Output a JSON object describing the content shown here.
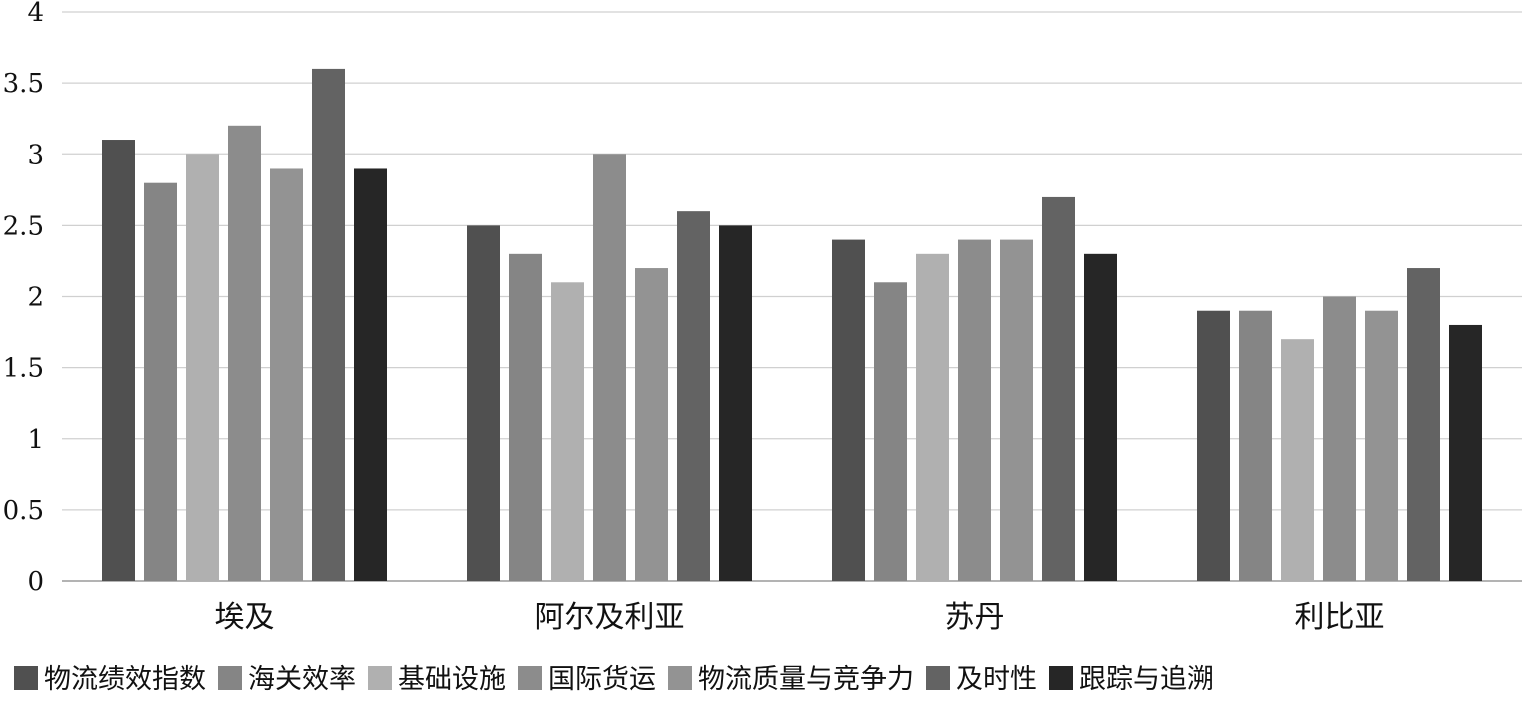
{
  "chart_data": {
    "type": "bar",
    "categories": [
      "埃及",
      "阿尔及利亚",
      "苏丹",
      "利比亚"
    ],
    "series": [
      {
        "name": "物流绩效指数",
        "color": "#505050",
        "values": [
          3.1,
          2.5,
          2.4,
          1.9
        ]
      },
      {
        "name": "海关效率",
        "color": "#858585",
        "values": [
          2.8,
          2.3,
          2.1,
          1.9
        ]
      },
      {
        "name": "基础设施",
        "color": "#b0b0b0",
        "values": [
          3.0,
          2.1,
          2.3,
          1.7
        ]
      },
      {
        "name": "国际货运",
        "color": "#8c8c8c",
        "values": [
          3.2,
          3.0,
          2.4,
          2.0
        ]
      },
      {
        "name": "物流质量与竞争力",
        "color": "#939393",
        "values": [
          2.9,
          2.2,
          2.4,
          1.9
        ]
      },
      {
        "name": "及时性",
        "color": "#636363",
        "values": [
          3.6,
          2.6,
          2.7,
          2.2
        ]
      },
      {
        "name": "跟踪与追溯",
        "color": "#262626",
        "values": [
          2.9,
          2.5,
          2.3,
          1.8
        ]
      }
    ],
    "ylim": [
      0,
      4
    ],
    "yticks": [
      "0",
      "0.5",
      "1",
      "1.5",
      "2",
      "2.5",
      "3",
      "3.5",
      "4"
    ],
    "grid": true,
    "legend_position": "bottom"
  }
}
